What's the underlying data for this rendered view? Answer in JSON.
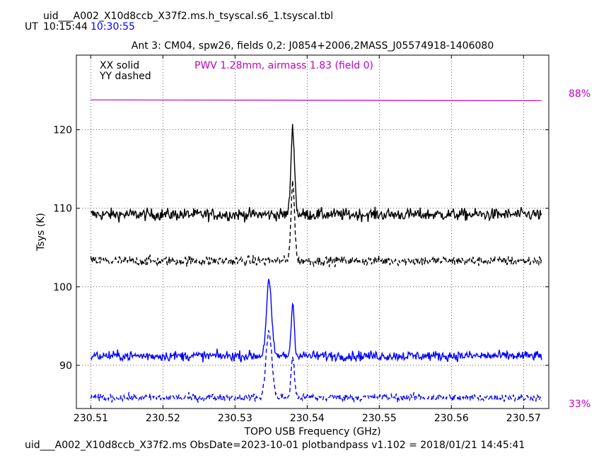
{
  "header": {
    "filename": "uid___A002_X10d8ccb_X37f2.ms.h_tsyscal.s6_1.tsyscal.tbl",
    "ut_label": "UT",
    "ut_time_1": "10:15:44",
    "ut_time_2": "10:30:55"
  },
  "footer": {
    "text": "uid___A002_X10d8ccb_X37f2.ms  ObsDate=2023-10-01   plotbandpass v1.102 = 2018/01/21 14:45:41"
  },
  "chart_data": {
    "type": "line",
    "title": "Ant 3: CM04,  spw26,  fields 0,2: J0854+2006,2MASS_J05574918-1406080",
    "xlabel": "TOPO USB Frequency (GHz)",
    "ylabel": "Tsys (K)",
    "xlim": [
      230.508,
      230.5735
    ],
    "ylim": [
      84.5,
      129.5
    ],
    "x_ticks": [
      "230.51",
      "230.52",
      "230.53",
      "230.54",
      "230.55",
      "230.56",
      "230.57"
    ],
    "y_ticks": [
      "90",
      "100",
      "110",
      "120"
    ],
    "grid": true,
    "legend": [
      "XX solid",
      "YY dashed"
    ],
    "annotation": "PWV 1.28mm, airmass 1.83 (field 0)",
    "atm_transmission": {
      "top_label": "88%",
      "bottom_label": "33%",
      "color": "#c000c0"
    },
    "series": [
      {
        "time": "10:15:44",
        "pol": "XX",
        "style": "solid",
        "color": "#000000",
        "baseline": 109.2,
        "noise": 0.55,
        "peaks": [
          [
            230.538,
            11.0,
            0.00025
          ]
        ]
      },
      {
        "time": "10:15:44",
        "pol": "YY",
        "style": "dashed",
        "color": "#000000",
        "baseline": 103.3,
        "noise": 0.45,
        "peaks": [
          [
            230.538,
            10.0,
            0.00025
          ]
        ]
      },
      {
        "time": "10:30:55",
        "pol": "XX",
        "style": "solid",
        "color": "#0000ff",
        "baseline": 91.2,
        "noise": 0.45,
        "peaks": [
          [
            230.5347,
            9.5,
            0.00035
          ],
          [
            230.538,
            6.6,
            0.00022
          ]
        ]
      },
      {
        "time": "10:30:55",
        "pol": "YY",
        "style": "dashed",
        "color": "#0000ff",
        "baseline": 85.9,
        "noise": 0.35,
        "peaks": [
          [
            230.5347,
            8.5,
            0.0004
          ],
          [
            230.538,
            5.2,
            0.00022
          ]
        ]
      }
    ],
    "atm_line": {
      "x_start": 230.51,
      "x_end": 230.5725,
      "y_start": 123.8,
      "y_end": 123.7
    }
  }
}
